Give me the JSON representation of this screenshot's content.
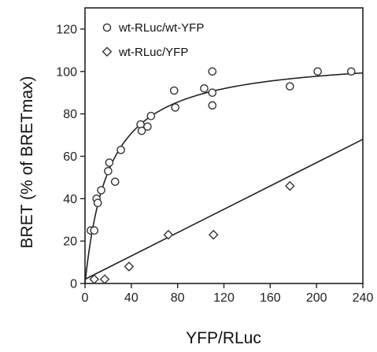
{
  "chart_data": {
    "type": "scatter",
    "xlabel": "YFP/RLuc",
    "ylabel": "BRET (% of BRETmax)",
    "xlim": [
      0,
      240
    ],
    "ylim": [
      0,
      130
    ],
    "x_ticks": [
      0,
      40,
      80,
      120,
      160,
      200,
      240
    ],
    "y_ticks": [
      0,
      20,
      40,
      60,
      80,
      100,
      120
    ],
    "x_tick_labels": [
      "0",
      "40",
      "80",
      "120",
      "160",
      "200",
      "240"
    ],
    "y_tick_labels": [
      "0",
      "20",
      "40",
      "60",
      "80",
      "100",
      "120"
    ],
    "grid": false,
    "legend_position": "top-left",
    "series": [
      {
        "name": "wt-RLuc/wt-YFP",
        "marker": "circle",
        "points": [
          [
            5,
            25
          ],
          [
            8,
            25
          ],
          [
            10,
            40
          ],
          [
            11,
            38
          ],
          [
            14,
            44
          ],
          [
            20,
            53
          ],
          [
            21,
            57
          ],
          [
            26,
            48
          ],
          [
            31,
            63
          ],
          [
            48,
            75
          ],
          [
            49,
            72
          ],
          [
            54,
            74
          ],
          [
            57,
            79
          ],
          [
            77,
            91
          ],
          [
            78,
            83
          ],
          [
            103,
            92
          ],
          [
            110,
            100
          ],
          [
            110,
            90
          ],
          [
            110,
            84
          ],
          [
            177,
            93
          ],
          [
            201,
            100
          ],
          [
            230,
            100
          ]
        ],
        "fit_curve": {
          "type": "hyperbolic",
          "bmax": 108,
          "k50": 21
        }
      },
      {
        "name": "wt-RLuc/YFP",
        "marker": "diamond",
        "points": [
          [
            8,
            2
          ],
          [
            17,
            2
          ],
          [
            38,
            8
          ],
          [
            72,
            23
          ],
          [
            111,
            23
          ],
          [
            177,
            46
          ]
        ],
        "fit_curve": {
          "type": "linear",
          "slope": 0.275,
          "intercept": 2
        }
      }
    ]
  }
}
